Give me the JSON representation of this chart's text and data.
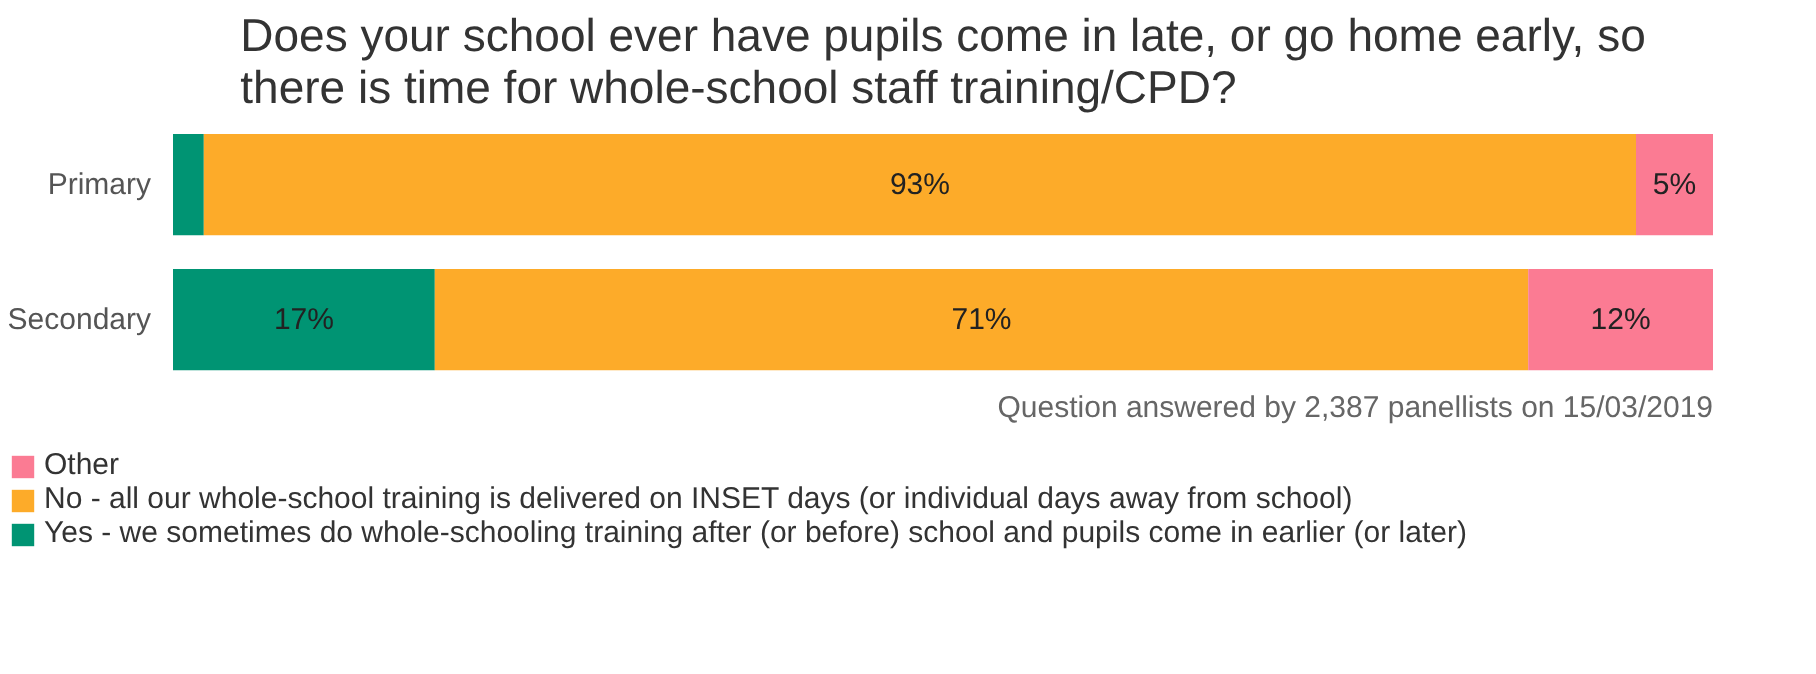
{
  "chart_data": {
    "type": "bar",
    "orientation": "horizontal",
    "stacked": true,
    "title": "Does your school ever have pupils come in late, or go home early, so there is time for whole-school staff training/CPD?",
    "categories": [
      "Primary",
      "Secondary"
    ],
    "series": [
      {
        "name": "Yes - we sometimes do whole-schooling training after (or before) school and pupils come in earlier (or later)",
        "color": "#009473",
        "values": [
          2,
          17
        ],
        "value_labels": [
          null,
          "17%"
        ]
      },
      {
        "name": "No - all our whole-school training is delivered on INSET days (or individual days away from school)",
        "color": "#fdab29",
        "values": [
          93,
          71
        ],
        "value_labels": [
          "93%",
          "71%"
        ]
      },
      {
        "name": "Other",
        "color": "#fb7b93",
        "values": [
          5,
          12
        ],
        "value_labels": [
          "5%",
          "12%"
        ]
      }
    ],
    "annotations": [
      "Question answered by 2,387 panellists on 15/03/2019"
    ],
    "legend": "bottom"
  }
}
